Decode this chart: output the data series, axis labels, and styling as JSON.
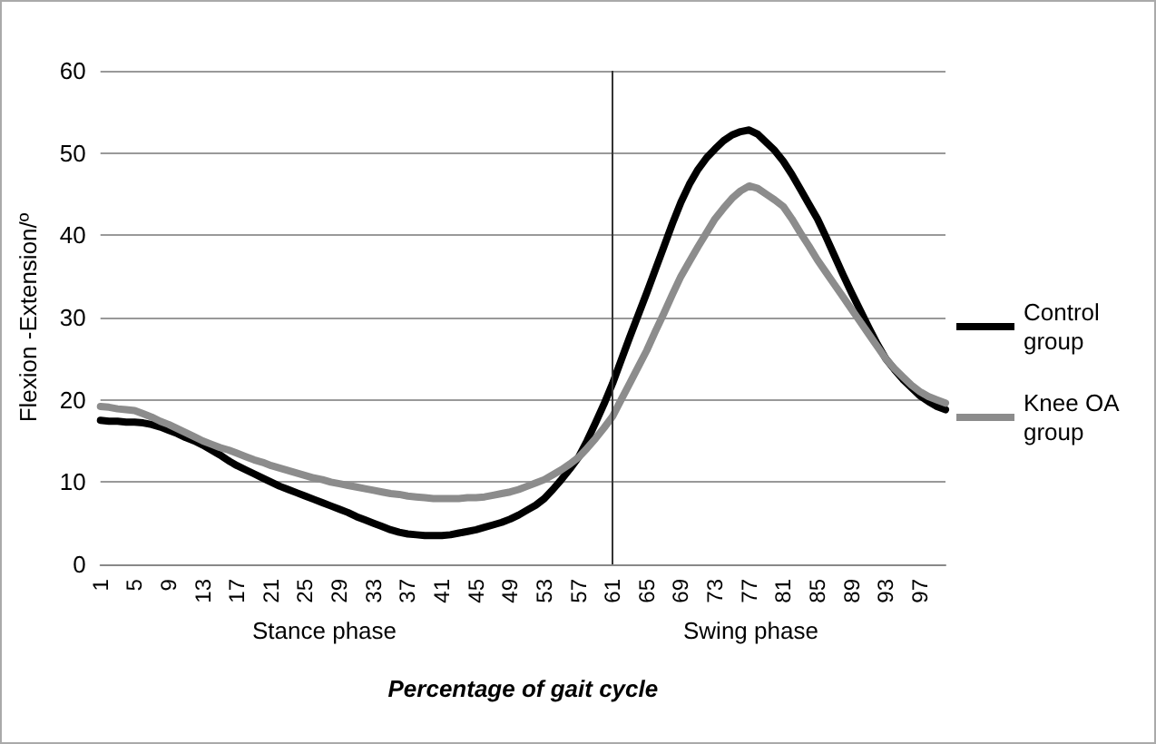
{
  "chart_data": {
    "type": "line",
    "xlabel": "Percentage of gait cycle",
    "ylabel": "Flexion -Extension/º",
    "categories": [
      "1",
      null,
      null,
      null,
      "5",
      null,
      null,
      null,
      "9",
      null,
      null,
      null,
      "13",
      null,
      null,
      null,
      "17",
      null,
      null,
      null,
      "21",
      null,
      null,
      null,
      "25",
      null,
      null,
      null,
      "29",
      null,
      null,
      null,
      "33",
      null,
      null,
      null,
      "37",
      null,
      null,
      null,
      "41",
      null,
      null,
      null,
      "45",
      null,
      null,
      null,
      "49",
      null,
      null,
      null,
      "53",
      null,
      null,
      null,
      "57",
      null,
      null,
      null,
      "61",
      null,
      null,
      null,
      "65",
      null,
      null,
      null,
      "69",
      null,
      null,
      null,
      "73",
      null,
      null,
      null,
      "77",
      null,
      null,
      null,
      "81",
      null,
      null,
      null,
      "85",
      null,
      null,
      null,
      "89",
      null,
      null,
      null,
      "93",
      null,
      null,
      null,
      "97",
      null,
      null,
      null
    ],
    "series": [
      {
        "name": "Control group",
        "color": "#000000",
        "values": [
          17.5,
          17.4,
          17.4,
          17.3,
          17.3,
          17.2,
          17.0,
          16.7,
          16.3,
          15.9,
          15.4,
          15.0,
          14.5,
          13.9,
          13.3,
          12.6,
          12.0,
          11.5,
          11.0,
          10.5,
          10.0,
          9.5,
          9.1,
          8.7,
          8.3,
          7.9,
          7.5,
          7.1,
          6.7,
          6.3,
          5.8,
          5.4,
          5.0,
          4.6,
          4.2,
          3.9,
          3.7,
          3.6,
          3.5,
          3.5,
          3.5,
          3.6,
          3.8,
          4.0,
          4.2,
          4.5,
          4.8,
          5.1,
          5.5,
          6.0,
          6.6,
          7.2,
          8.0,
          9.1,
          10.3,
          11.6,
          13.0,
          15.0,
          17.2,
          19.5,
          22.0,
          24.8,
          27.6,
          30.3,
          33.0,
          35.8,
          38.6,
          41.4,
          44.0,
          46.2,
          48.0,
          49.4,
          50.5,
          51.5,
          52.2,
          52.6,
          52.8,
          52.3,
          51.3,
          50.3,
          49.0,
          47.4,
          45.6,
          43.8,
          42.0,
          39.8,
          37.5,
          35.2,
          33.0,
          30.9,
          28.8,
          26.8,
          25.0,
          23.7,
          22.5,
          21.5,
          20.5,
          19.8,
          19.2,
          18.8
        ]
      },
      {
        "name": "Knee OA group",
        "color": "#8c8c8c",
        "values": [
          19.2,
          19.1,
          18.9,
          18.8,
          18.7,
          18.3,
          17.9,
          17.4,
          17.0,
          16.5,
          16.0,
          15.5,
          15.0,
          14.6,
          14.2,
          13.9,
          13.5,
          13.1,
          12.7,
          12.4,
          12.0,
          11.7,
          11.4,
          11.1,
          10.8,
          10.5,
          10.3,
          10.0,
          9.8,
          9.6,
          9.4,
          9.2,
          9.0,
          8.8,
          8.6,
          8.5,
          8.3,
          8.2,
          8.1,
          8.0,
          8.0,
          8.0,
          8.0,
          8.1,
          8.1,
          8.2,
          8.4,
          8.6,
          8.8,
          9.1,
          9.5,
          9.9,
          10.3,
          10.9,
          11.5,
          12.2,
          13.0,
          14.1,
          15.3,
          16.6,
          18.0,
          20.0,
          22.0,
          24.0,
          26.0,
          28.3,
          30.5,
          32.8,
          35.0,
          36.8,
          38.6,
          40.3,
          42.0,
          43.3,
          44.5,
          45.4,
          46.0,
          45.7,
          45.0,
          44.3,
          43.5,
          42.0,
          40.3,
          38.7,
          37.0,
          35.5,
          34.0,
          32.5,
          31.0,
          29.5,
          28.0,
          26.5,
          25.0,
          23.8,
          22.8,
          21.8,
          21.0,
          20.4,
          20.0,
          19.6
        ]
      }
    ],
    "ylim": [
      0,
      60
    ],
    "yticks": [
      0,
      10,
      20,
      30,
      40,
      50,
      60
    ],
    "grid": "y",
    "legend": "right",
    "marker": "none",
    "line_style": "solid",
    "ref_lines": [
      {
        "axis": "x",
        "value": "61",
        "color": "#333333"
      }
    ],
    "annotations": [
      "Stance phase",
      "Swing phase"
    ]
  }
}
